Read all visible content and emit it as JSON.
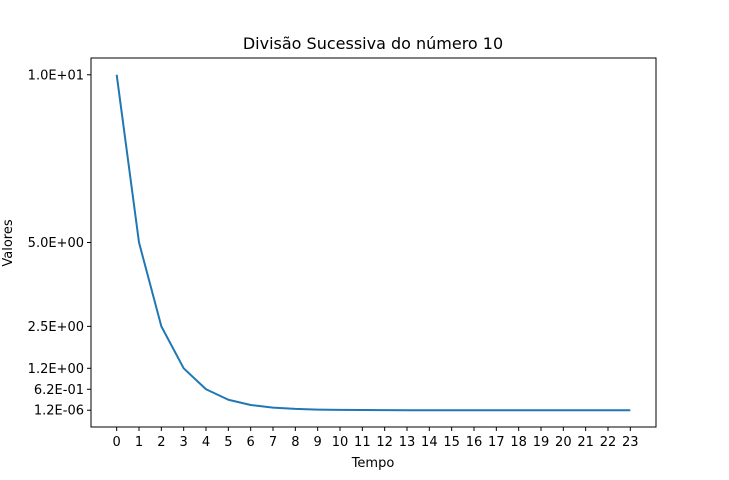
{
  "chart_data": {
    "type": "line",
    "title": "Divisão Sucessiva do número 10",
    "xlabel": "Tempo",
    "ylabel": "Valores",
    "x": [
      0,
      1,
      2,
      3,
      4,
      5,
      6,
      7,
      8,
      9,
      10,
      11,
      12,
      13,
      14,
      15,
      16,
      17,
      18,
      19,
      20,
      21,
      22,
      23
    ],
    "series": [
      {
        "color": "#1f77b4",
        "values": [
          10,
          5,
          2.5,
          1.25,
          0.625,
          0.3125,
          0.15625,
          0.078125,
          0.0390625,
          0.01953125,
          0.009765625,
          0.0048828125,
          0.00244140625,
          0.001220703125,
          0.0006103515625,
          0.00030517578125,
          0.000152587890625,
          7.62939453125e-05,
          3.814697265625e-05,
          1.9073486328125e-05,
          9.5367431640625e-06,
          4.76837158203125e-06,
          2.384185791015625e-06,
          1.1920928955078125e-06
        ]
      }
    ],
    "xticks": [
      "0",
      "1",
      "2",
      "3",
      "4",
      "5",
      "6",
      "7",
      "8",
      "9",
      "10",
      "11",
      "12",
      "13",
      "14",
      "15",
      "16",
      "17",
      "18",
      "19",
      "20",
      "21",
      "22",
      "23"
    ],
    "yticks": [
      {
        "value": 10,
        "label": "1.0E+01"
      },
      {
        "value": 5,
        "label": "5.0E+00"
      },
      {
        "value": 2.5,
        "label": "2.5E+00"
      },
      {
        "value": 1.25,
        "label": "1.2E+00"
      },
      {
        "value": 0.625,
        "label": "6.2E-01"
      },
      {
        "value": 1.1920928955078125e-06,
        "label": "1.2E-06"
      }
    ],
    "xlim": [
      -1.15,
      24.15
    ],
    "ylim": [
      -0.5,
      10.5
    ],
    "grid": false
  }
}
